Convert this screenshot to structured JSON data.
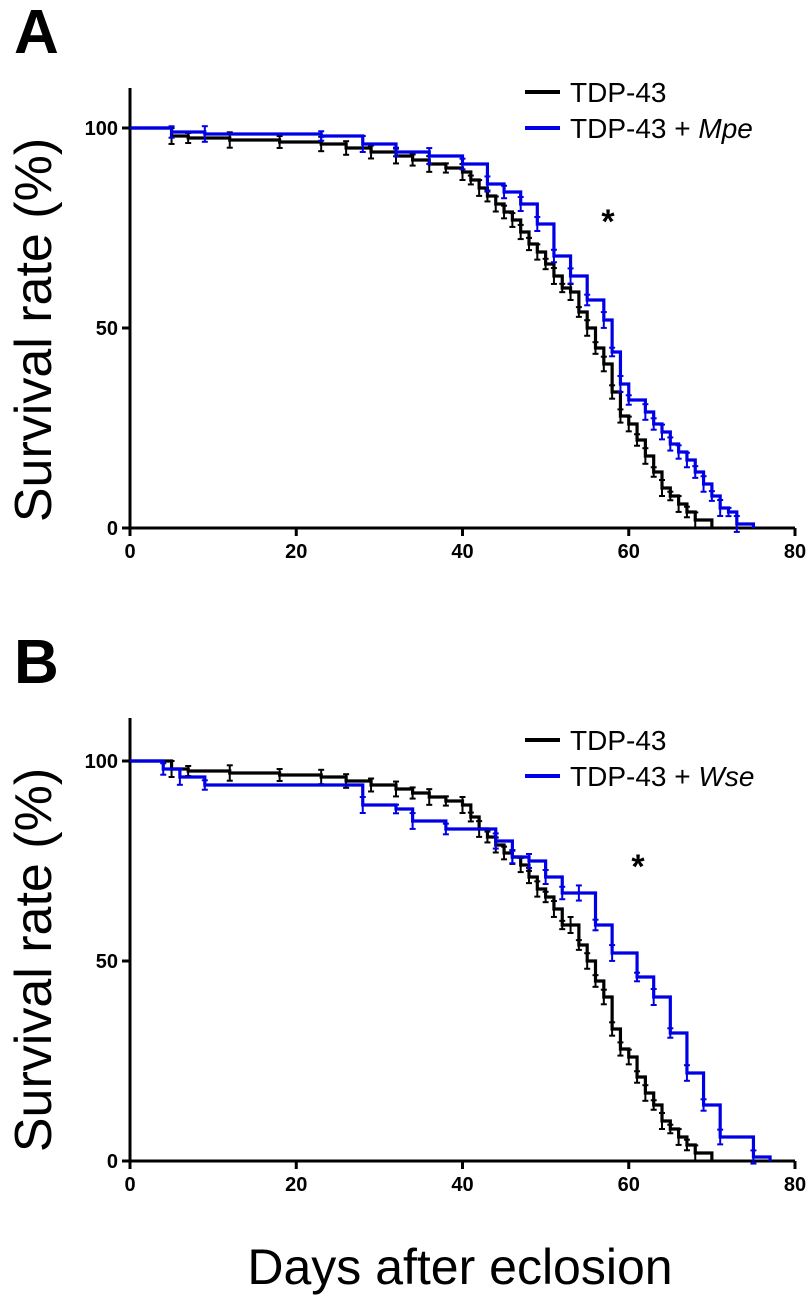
{
  "figure": {
    "xlabel": "Days after eclosion"
  },
  "chart_data": [
    {
      "panel": "A",
      "type": "line",
      "step": true,
      "ylabel": "Survival rate (%)",
      "xlim": [
        0,
        80
      ],
      "ylim": [
        0,
        100
      ],
      "xticks": [
        "0",
        "20",
        "40",
        "60",
        "80"
      ],
      "yticks": [
        "0",
        "50",
        "100"
      ],
      "annotation": "*",
      "legend_position": "top-right",
      "series": [
        {
          "name": "TDP-43",
          "legend_plain": "TDP-43",
          "legend_italic": "",
          "color": "#000000",
          "x": [
            0,
            5,
            7,
            12,
            18,
            23,
            26,
            29,
            32,
            34,
            36,
            38,
            40,
            41,
            42,
            43,
            44,
            45,
            46,
            47,
            48,
            49,
            50,
            51,
            52,
            53,
            54,
            55,
            56,
            57,
            58,
            59,
            60,
            61,
            62,
            63,
            64,
            65,
            66,
            67,
            68,
            70
          ],
          "y": [
            100,
            98,
            97.5,
            97,
            96.5,
            96,
            95,
            94,
            93,
            92,
            91,
            90,
            89,
            87,
            85,
            83,
            81,
            79,
            77,
            74,
            71,
            69,
            66,
            63,
            60,
            59,
            54,
            50,
            45,
            41,
            34,
            28,
            26,
            22,
            18,
            14,
            10,
            8,
            6,
            4,
            2,
            0
          ],
          "end_x": 70
        },
        {
          "name": "TDP-43 + Mpe",
          "legend_plain": "TDP-43 + ",
          "legend_italic": "Mpe",
          "color": "#0000e6",
          "x": [
            0,
            5,
            9,
            23,
            28,
            32,
            36,
            40,
            43,
            45,
            47,
            49,
            51,
            53,
            55,
            57,
            58,
            59,
            60,
            62,
            63,
            64,
            65,
            66,
            67,
            68,
            69,
            70,
            71,
            72,
            73,
            75
          ],
          "y": [
            100,
            99,
            98.5,
            98,
            96,
            94,
            93,
            91,
            86,
            84,
            81,
            76,
            68,
            63,
            57,
            52,
            44,
            36,
            32,
            29,
            26,
            24,
            21,
            19,
            17,
            14,
            11,
            8,
            5,
            4,
            1,
            0
          ],
          "end_x": 75
        }
      ]
    },
    {
      "panel": "B",
      "type": "line",
      "step": true,
      "ylabel": "Survival rate (%)",
      "xlim": [
        0,
        80
      ],
      "ylim": [
        0,
        100
      ],
      "xticks": [
        "0",
        "20",
        "40",
        "60",
        "80"
      ],
      "yticks": [
        "0",
        "50",
        "100"
      ],
      "annotation": "*",
      "legend_position": "top-right",
      "series": [
        {
          "name": "TDP-43",
          "legend_plain": "TDP-43",
          "legend_italic": "",
          "color": "#000000",
          "x": [
            0,
            5,
            7,
            12,
            18,
            23,
            26,
            29,
            32,
            34,
            36,
            38,
            40,
            41,
            42,
            43,
            44,
            45,
            46,
            47,
            48,
            49,
            50,
            51,
            52,
            53,
            54,
            55,
            56,
            57,
            58,
            59,
            60,
            61,
            62,
            63,
            64,
            65,
            66,
            67,
            68,
            70
          ],
          "y": [
            100,
            98,
            97.5,
            97,
            96.5,
            96,
            95,
            94,
            93,
            92,
            91,
            90,
            89,
            86,
            83,
            81,
            79,
            77,
            76,
            74,
            71,
            68,
            66,
            63,
            59,
            59,
            54,
            50,
            45,
            41,
            33,
            28,
            26,
            21,
            17,
            14,
            10,
            8,
            6,
            4,
            2,
            0
          ],
          "end_x": 70
        },
        {
          "name": "TDP-43 + Wse",
          "legend_plain": "TDP-43 + ",
          "legend_italic": "Wse",
          "color": "#0000e6",
          "x": [
            0,
            4,
            6,
            9,
            28,
            32,
            34,
            38,
            44,
            46,
            48,
            50,
            52,
            54,
            56,
            58,
            61,
            63,
            65,
            67,
            69,
            71,
            75,
            77
          ],
          "y": [
            100,
            98,
            96,
            94,
            89,
            88,
            85,
            83,
            80,
            76,
            75,
            71,
            67,
            67,
            59,
            52,
            46,
            41,
            32,
            22,
            14,
            6,
            1,
            0
          ],
          "end_x": 77
        }
      ]
    }
  ]
}
